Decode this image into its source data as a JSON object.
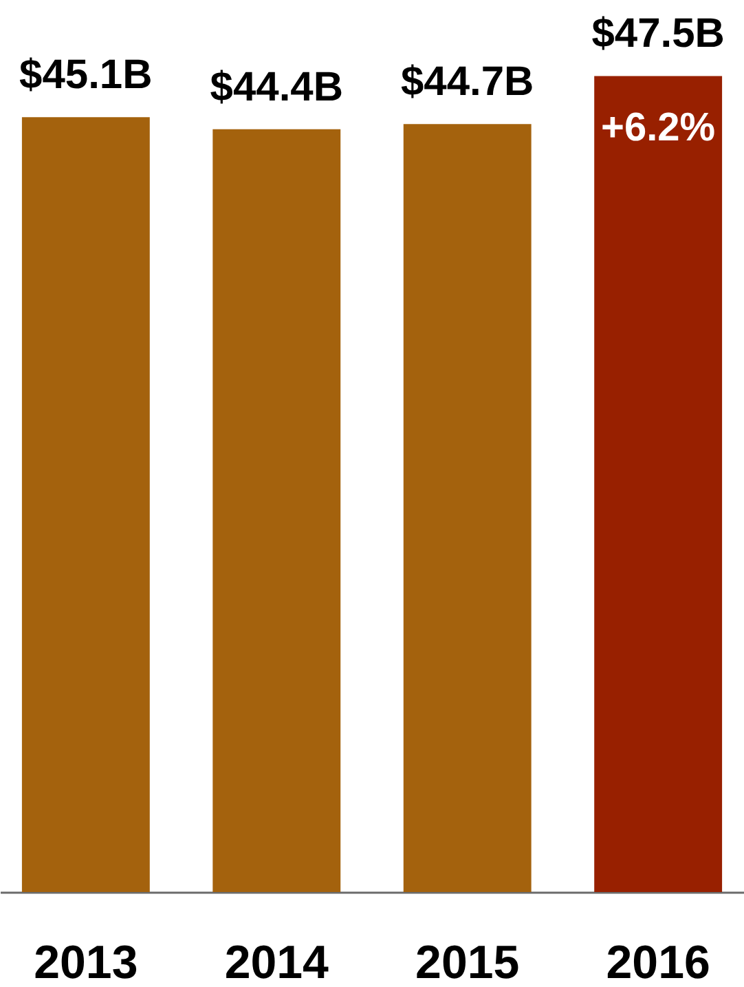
{
  "chart_data": {
    "type": "bar",
    "categories": [
      "2013",
      "2014",
      "2015",
      "2016"
    ],
    "values": [
      45.1,
      44.4,
      44.7,
      47.5
    ],
    "colors": [
      "#a4620d",
      "#a4620d",
      "#a4620d",
      "#982000"
    ],
    "value_labels": [
      "$45.1B",
      "$44.4B",
      "$44.7B",
      "$47.5B"
    ],
    "annotations": [
      {
        "text": "+6.2%",
        "x": "2016",
        "y": 47.5
      }
    ]
  }
}
